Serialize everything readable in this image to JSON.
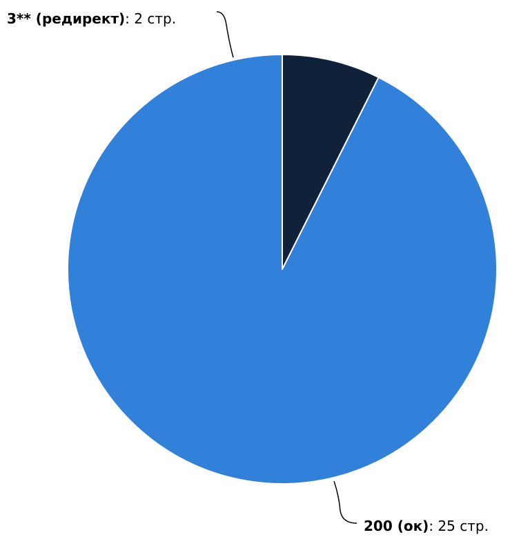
{
  "chart_data": {
    "type": "pie",
    "title": "",
    "categories": [
      "200 (ок)",
      "3** (редирект)"
    ],
    "values": [
      25,
      2
    ],
    "value_suffix": " стр.",
    "colors": [
      "#3180D9",
      "#0F2239"
    ],
    "legend": "none",
    "labels": [
      {
        "name": "200 (ок)",
        "value_text": "25 стр."
      },
      {
        "name": "3** (редирект)",
        "value_text": "2 стр."
      }
    ]
  }
}
